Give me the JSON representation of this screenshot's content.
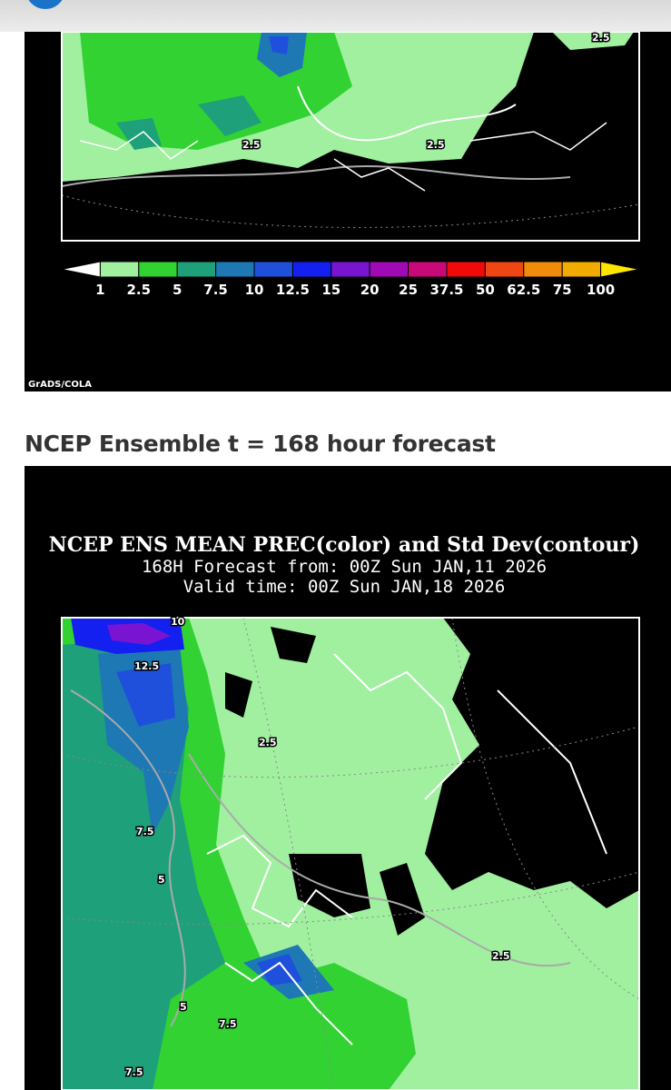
{
  "heading": "NCEP Ensemble t = 168 hour forecast",
  "image1": {
    "credit": "GrADS/COLA",
    "contour_labels": [
      "2.5",
      "2.5",
      "2.5"
    ],
    "colorbar": {
      "labels": [
        "1",
        "2.5",
        "5",
        "7.5",
        "10",
        "12.5",
        "15",
        "20",
        "25",
        "37.5",
        "50",
        "62.5",
        "75",
        "100"
      ],
      "colors": [
        "#ffffff",
        "#a0f0a0",
        "#32d232",
        "#1ea07a",
        "#1e78b4",
        "#1e50dc",
        "#1420f0",
        "#7814d2",
        "#a00ab4",
        "#c80a78",
        "#f00a0a",
        "#f04614",
        "#f08c0a",
        "#f0aa00",
        "#ffe600"
      ]
    }
  },
  "image2": {
    "title": "NCEP ENS MEAN PREC(color) and Std Dev(contour)",
    "line1": "168H Forecast from: 00Z Sun JAN,11 2026",
    "line2": "Valid time: 00Z Sun JAN,18 2026",
    "contour_labels": [
      "10",
      "12.5",
      "2.5",
      "7.5",
      "5",
      "2.5",
      "5",
      "7.5",
      "7.5"
    ]
  }
}
